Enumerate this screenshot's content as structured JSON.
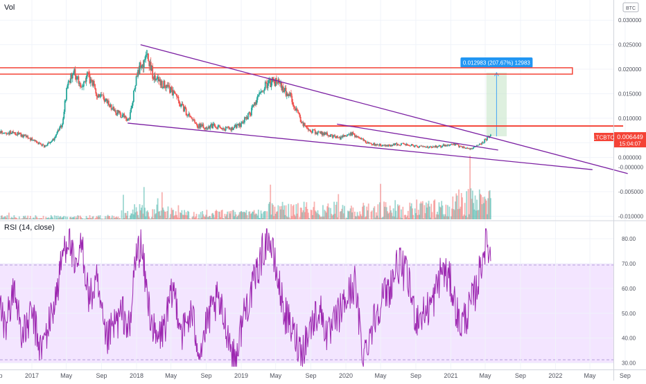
{
  "vol_label": "Vol",
  "currency_badge": "BTC",
  "symbol_tag": "LTCBTC",
  "last_price": "0.006449",
  "countdown": "15:04:07",
  "measure_label": "0.012983 (207.67%) 12983",
  "rsi_label": "RSI (14, close)",
  "colors": {
    "up": "#26a69a",
    "down": "#ef5350",
    "trendline": "#7b1fa2",
    "resistance": "#f44336",
    "rsi_line": "#9c27b0",
    "rsi_band": "#f3e5ff",
    "measure_box": "#c8e6c9",
    "measure_label_bg": "#2196f3"
  },
  "chart_data": [
    {
      "type": "candlestick",
      "symbol": "LTCBTC",
      "y_ticks": [
        "0.030000",
        "0.025000",
        "0.020000",
        "0.015000",
        "0.010000",
        "0.005000",
        "0.000000",
        "-0.000000",
        "-0.005000",
        "-0.010000"
      ],
      "ylim": [
        -0.0105,
        0.033
      ],
      "x_ticks": [
        "Sep",
        "2017",
        "May",
        "Sep",
        "2018",
        "May",
        "Sep",
        "2019",
        "May",
        "Sep",
        "2020",
        "May",
        "Sep",
        "2021",
        "May",
        "Sep",
        "2022",
        "May",
        "Sep"
      ],
      "price_path": {
        "dates": [
          "2016-09-01",
          "2016-11-15",
          "2017-01-01",
          "2017-02-15",
          "2017-03-15",
          "2017-04-15",
          "2017-05-05",
          "2017-05-25",
          "2017-06-20",
          "2017-07-15",
          "2017-08-15",
          "2017-09-15",
          "2017-10-15",
          "2017-11-15",
          "2017-12-05",
          "2017-12-20",
          "2018-01-10",
          "2018-02-07",
          "2018-03-05",
          "2018-04-01",
          "2018-05-01",
          "2018-06-01",
          "2018-07-01",
          "2018-08-01",
          "2018-09-01",
          "2018-10-01",
          "2018-11-01",
          "2018-12-01",
          "2019-01-01",
          "2019-02-01",
          "2019-03-01",
          "2019-04-01",
          "2019-05-01",
          "2019-06-20",
          "2019-07-20",
          "2019-08-15",
          "2019-09-15",
          "2019-10-15",
          "2019-11-15",
          "2019-12-15",
          "2020-01-15",
          "2020-02-15",
          "2020-03-15",
          "2020-04-15",
          "2020-05-15",
          "2020-06-15",
          "2020-07-15",
          "2020-08-15",
          "2020-09-15",
          "2020-10-15",
          "2020-11-15",
          "2020-12-15",
          "2021-01-15",
          "2021-02-15",
          "2021-03-15",
          "2021-04-01",
          "2021-04-20",
          "2021-05-10",
          "2021-05-20"
        ],
        "values": [
          0.0073,
          0.0068,
          0.0056,
          0.0042,
          0.0055,
          0.0085,
          0.0165,
          0.0195,
          0.0165,
          0.019,
          0.0152,
          0.0135,
          0.0115,
          0.0105,
          0.0095,
          0.0145,
          0.0205,
          0.0225,
          0.018,
          0.017,
          0.016,
          0.013,
          0.0105,
          0.0085,
          0.0082,
          0.0085,
          0.0078,
          0.008,
          0.0088,
          0.011,
          0.014,
          0.017,
          0.0175,
          0.0145,
          0.0105,
          0.008,
          0.0072,
          0.0068,
          0.0064,
          0.006,
          0.007,
          0.0062,
          0.005,
          0.0046,
          0.0044,
          0.0046,
          0.0048,
          0.0045,
          0.0042,
          0.004,
          0.0042,
          0.0045,
          0.0046,
          0.004,
          0.0038,
          0.0046,
          0.005,
          0.006,
          0.0064
        ]
      },
      "annotations": [
        {
          "kind": "trendline",
          "from": [
            "2018-01-15",
            0.025
          ],
          "to": [
            "2022-09-10",
            -0.0013
          ]
        },
        {
          "kind": "trendline",
          "from": [
            "2017-12-01",
            0.009
          ],
          "to": [
            "2022-05-10",
            -0.0005
          ]
        },
        {
          "kind": "trendline",
          "from": [
            "2019-12-01",
            0.0088
          ],
          "to": [
            "2021-06-15",
            0.0035
          ]
        },
        {
          "kind": "resistance_zone",
          "from_date": "2016-09-01",
          "to_date": "2022-03-01",
          "y_range": [
            0.019,
            0.0203
          ]
        },
        {
          "kind": "resistance_line",
          "from_date": "2019-08-15",
          "to_date": "2022-08-25",
          "y": 0.0084
        },
        {
          "kind": "measure",
          "from_date": "2021-05-05",
          "to_date": "2021-07-15",
          "y_range": [
            0.0063,
            0.0193
          ],
          "label": "0.012983 (207.67%) 12983"
        }
      ]
    },
    {
      "type": "line",
      "name": "RSI (14, close)",
      "y_ticks": [
        "80.00",
        "70.00",
        "60.00",
        "50.00",
        "40.00",
        "30.00"
      ],
      "ylim": [
        28.5,
        85
      ],
      "band": [
        30,
        70
      ],
      "series_path": {
        "dates": [
          "2016-09-01",
          "2016-10-01",
          "2016-11-01",
          "2016-12-01",
          "2017-01-01",
          "2017-02-01",
          "2017-03-01",
          "2017-04-01",
          "2017-04-20",
          "2017-05-10",
          "2017-06-01",
          "2017-06-25",
          "2017-07-20",
          "2017-08-15",
          "2017-09-15",
          "2017-10-15",
          "2017-11-15",
          "2017-12-10",
          "2017-12-25",
          "2018-01-15",
          "2018-02-10",
          "2018-03-10",
          "2018-04-10",
          "2018-05-10",
          "2018-06-10",
          "2018-07-10",
          "2018-08-10",
          "2018-09-10",
          "2018-10-10",
          "2018-11-10",
          "2018-12-10",
          "2019-01-10",
          "2019-02-10",
          "2019-03-10",
          "2019-04-05",
          "2019-05-01",
          "2019-06-01",
          "2019-07-01",
          "2019-08-01",
          "2019-09-01",
          "2019-10-01",
          "2019-11-01",
          "2019-12-01",
          "2020-01-01",
          "2020-02-01",
          "2020-03-01",
          "2020-04-01",
          "2020-05-01",
          "2020-06-01",
          "2020-07-01",
          "2020-08-01",
          "2020-09-01",
          "2020-10-01",
          "2020-11-01",
          "2020-12-01",
          "2021-01-01",
          "2021-02-01",
          "2021-03-01",
          "2021-04-01",
          "2021-04-25",
          "2021-05-05",
          "2021-05-20"
        ],
        "values": [
          55,
          45,
          60,
          40,
          50,
          35,
          45,
          60,
          75,
          82,
          65,
          78,
          55,
          62,
          38,
          45,
          50,
          42,
          70,
          78,
          55,
          38,
          45,
          60,
          42,
          50,
          35,
          48,
          55,
          45,
          30,
          50,
          60,
          72,
          82,
          68,
          50,
          42,
          35,
          45,
          52,
          40,
          48,
          55,
          62,
          32,
          45,
          55,
          60,
          70,
          65,
          48,
          50,
          55,
          68,
          62,
          45,
          50,
          60,
          75,
          80,
          72
        ]
      }
    }
  ]
}
